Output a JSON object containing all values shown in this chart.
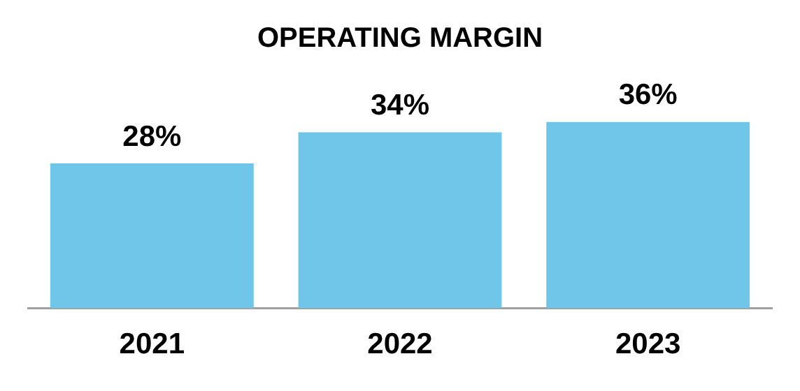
{
  "chart_data": {
    "type": "bar",
    "title": "OPERATING MARGIN",
    "categories": [
      "2021",
      "2022",
      "2023"
    ],
    "values": [
      28,
      34,
      36
    ],
    "value_labels": [
      "28%",
      "34%",
      "36%"
    ],
    "color": "#6fc6e8",
    "grid": false,
    "legend": false,
    "tick_labels": "x"
  }
}
